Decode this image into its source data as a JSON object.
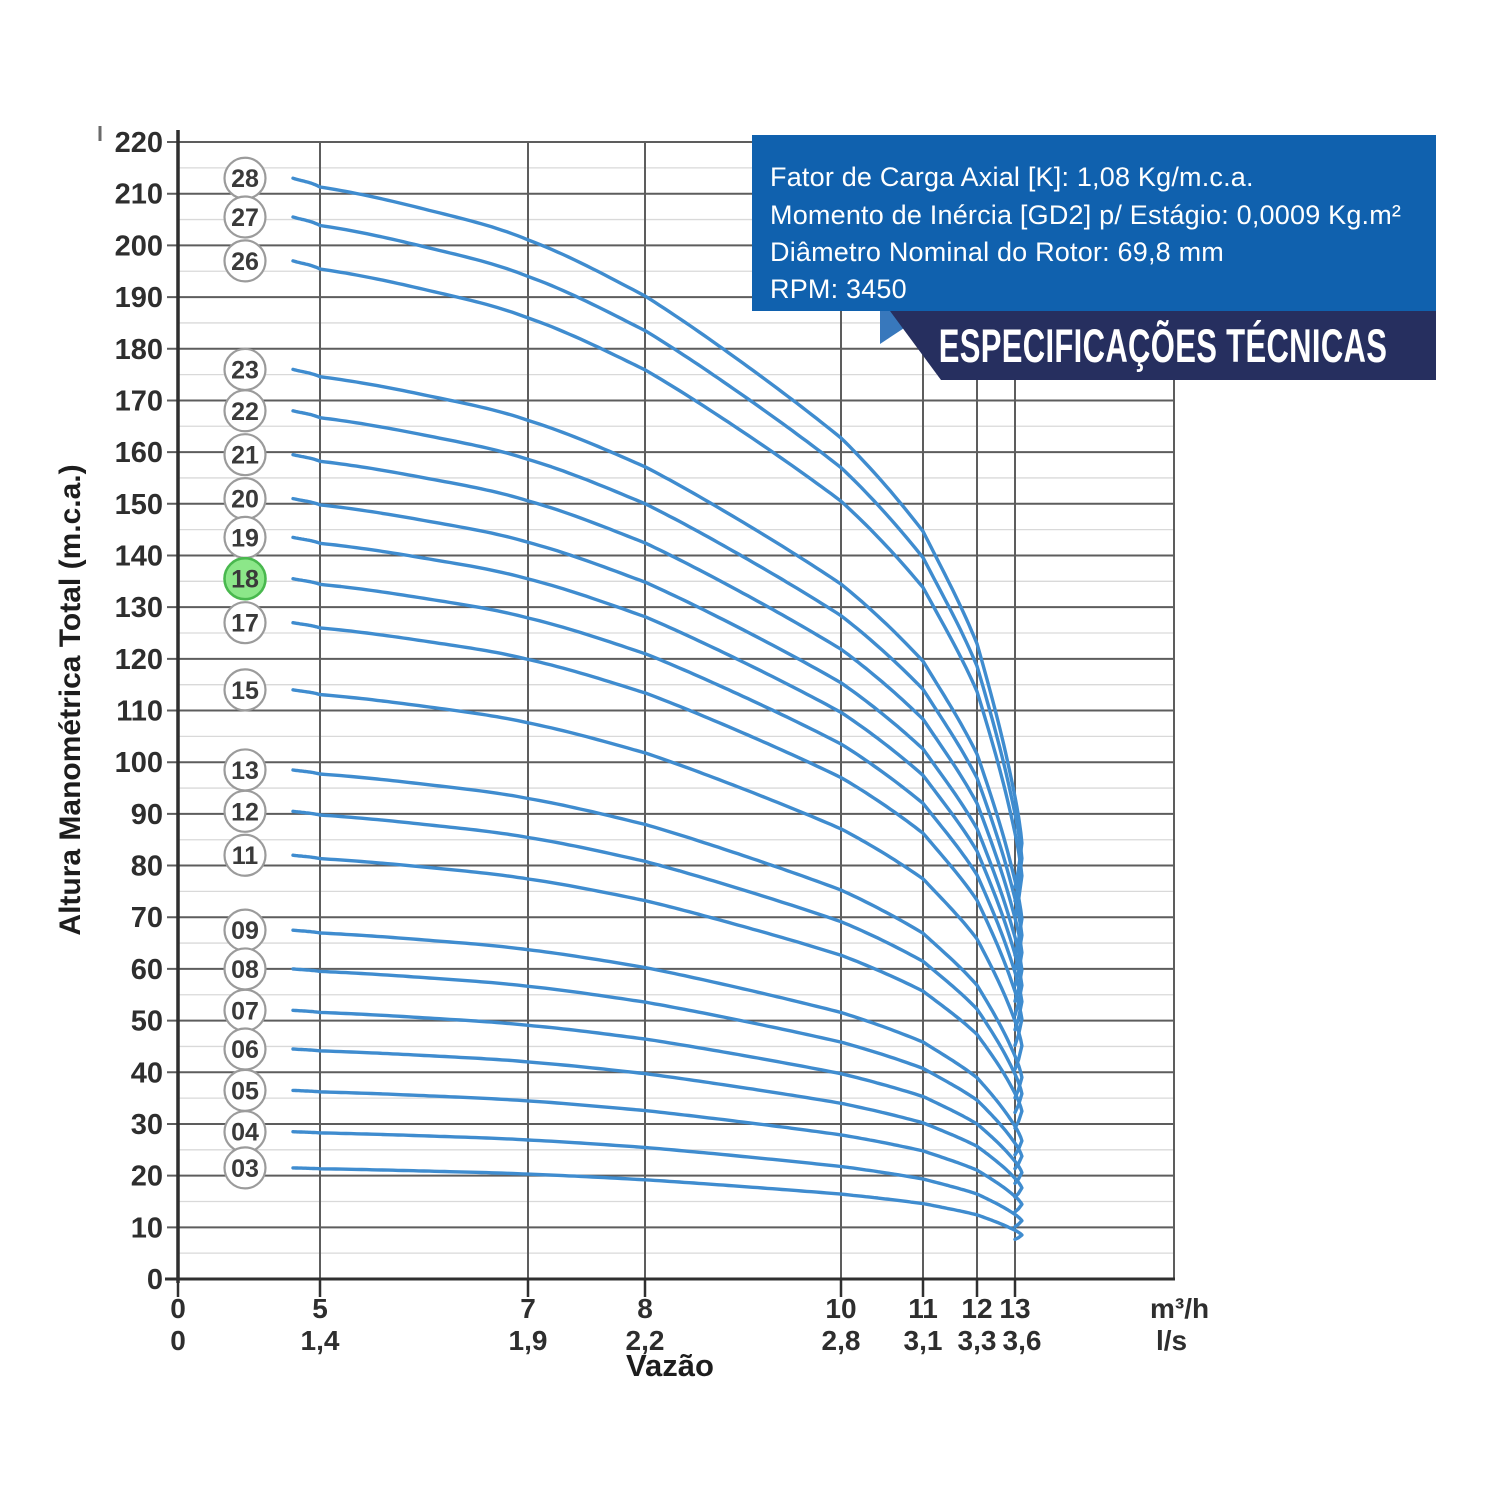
{
  "page": {
    "background": "#ffffff"
  },
  "spec_box": {
    "lines": [
      "Fator de Carga Axial [K]: 1,08 Kg/m.c.a.",
      "Momento de Inércia [GD2] p/ Estágio: 0,0009 Kg.m²",
      "Diâmetro Nominal do Rotor: 69,8 mm",
      "RPM: 3450"
    ],
    "banner": "ESPECIFICAÇÕES TÉCNICAS",
    "colors": {
      "box": "#1061ae",
      "fold": "#3878bc",
      "banner": "#262f5f",
      "text": "#ffffff"
    }
  },
  "axes": {
    "x_title": "Vazão",
    "y_title": "Altura Manométrica Total (m.c.a.)",
    "x_unit_primary": "m³/h",
    "x_unit_secondary": "l/s"
  },
  "chart_data": {
    "type": "line",
    "x_axis": {
      "label": "Vazão",
      "units": [
        "m³/h",
        "l/s"
      ],
      "tick_values": [
        0,
        5,
        7,
        8,
        10,
        11,
        12,
        13
      ],
      "ticks_m3h": [
        "0",
        "5",
        "7",
        "8",
        "10",
        "11",
        "12",
        "13"
      ],
      "ticks_ls": [
        "0",
        "1,4",
        "1,9",
        "2,2",
        "2,8",
        "3,1",
        "3,3",
        "3,6"
      ]
    },
    "y_axis": {
      "label": "Altura Manométrica Total (m.c.a.)",
      "min": 0,
      "max": 220,
      "major_step": 10,
      "minor_step": 5
    },
    "grid": true,
    "legend_position": "left-badges",
    "stages": [
      {
        "label": "28",
        "shutoff_head_mca": 213,
        "highlighted": false
      },
      {
        "label": "27",
        "shutoff_head_mca": 205.5,
        "highlighted": false
      },
      {
        "label": "26",
        "shutoff_head_mca": 197,
        "highlighted": false
      },
      {
        "label": "23",
        "shutoff_head_mca": 176,
        "highlighted": false
      },
      {
        "label": "22",
        "shutoff_head_mca": 168,
        "highlighted": false
      },
      {
        "label": "21",
        "shutoff_head_mca": 159.5,
        "highlighted": false
      },
      {
        "label": "20",
        "shutoff_head_mca": 151,
        "highlighted": false
      },
      {
        "label": "19",
        "shutoff_head_mca": 143.5,
        "highlighted": false
      },
      {
        "label": "18",
        "shutoff_head_mca": 135.5,
        "highlighted": true
      },
      {
        "label": "17",
        "shutoff_head_mca": 127,
        "highlighted": false
      },
      {
        "label": "15",
        "shutoff_head_mca": 114,
        "highlighted": false
      },
      {
        "label": "13",
        "shutoff_head_mca": 98.5,
        "highlighted": false
      },
      {
        "label": "12",
        "shutoff_head_mca": 90.5,
        "highlighted": false
      },
      {
        "label": "11",
        "shutoff_head_mca": 82,
        "highlighted": false
      },
      {
        "label": "09",
        "shutoff_head_mca": 67.5,
        "highlighted": false
      },
      {
        "label": "08",
        "shutoff_head_mca": 60,
        "highlighted": false
      },
      {
        "label": "07",
        "shutoff_head_mca": 52,
        "highlighted": false
      },
      {
        "label": "06",
        "shutoff_head_mca": 44.5,
        "highlighted": false
      },
      {
        "label": "05",
        "shutoff_head_mca": 36.5,
        "highlighted": false
      },
      {
        "label": "04",
        "shutoff_head_mca": 28.5,
        "highlighted": false
      },
      {
        "label": "03",
        "shutoff_head_mca": 21.5,
        "highlighted": false
      }
    ],
    "curve_profile": {
      "description": "fraction of shutoff head vs flow (m³/h), identical shape for every stage count",
      "q_start": 4.05,
      "q_end": 13.18,
      "anchors": [
        [
          4.05,
          1.0
        ],
        [
          5,
          0.992
        ],
        [
          6,
          0.972
        ],
        [
          7,
          0.944
        ],
        [
          8,
          0.893
        ],
        [
          9,
          0.832
        ],
        [
          10,
          0.764
        ],
        [
          10.6,
          0.716
        ],
        [
          11.2,
          0.66
        ],
        [
          11.8,
          0.6
        ],
        [
          12.3,
          0.54
        ],
        [
          12.7,
          0.486
        ],
        [
          13.0,
          0.438
        ],
        [
          13.12,
          0.414
        ],
        [
          13.18,
          0.396
        ]
      ],
      "hook": [
        [
          13.09,
          0.372
        ],
        [
          13.0,
          0.356
        ]
      ]
    },
    "colors": {
      "curve": "#3f8ccf",
      "grid_major": "#5d5d5d",
      "grid_minor": "#d9d9d9",
      "axis": "#2f2f2f",
      "tick_text": "#2e2e2e",
      "circle_fill": "#ffffff",
      "circle_stroke": "#9b9b9b",
      "circle_text": "#3a3a3a",
      "highlight_fill": "#8ce789",
      "highlight_stroke": "#49b84e"
    }
  }
}
